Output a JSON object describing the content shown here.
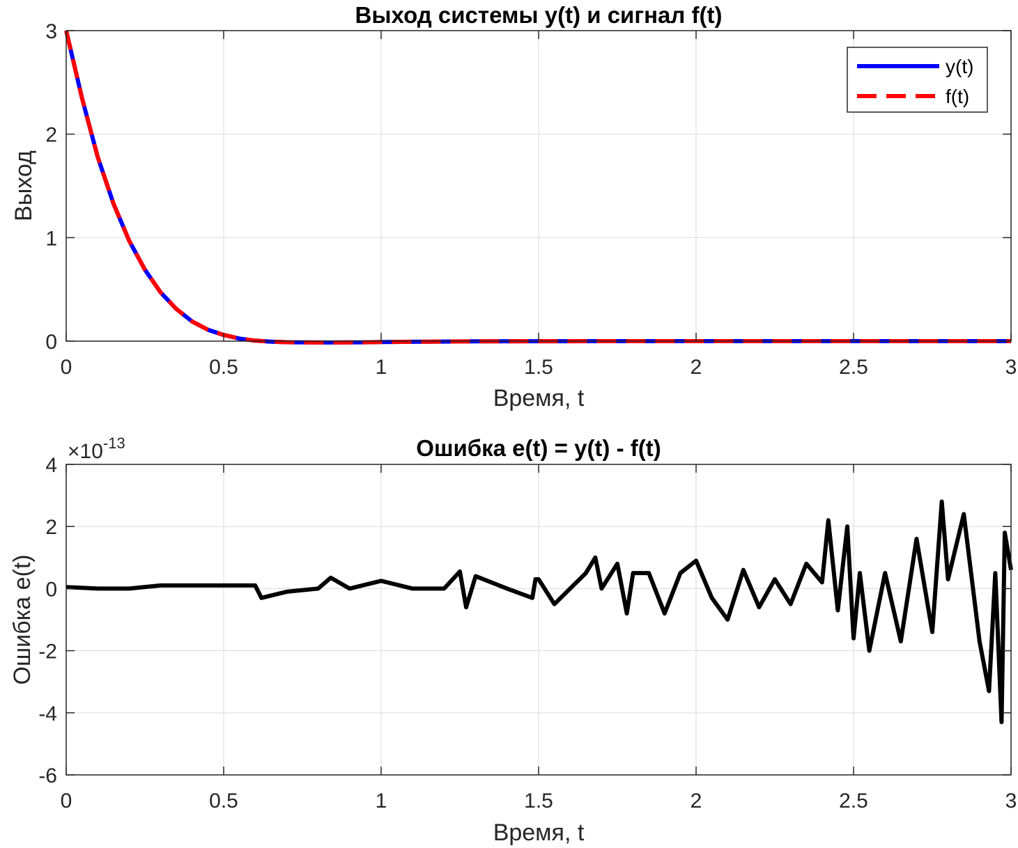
{
  "chart_data": [
    {
      "type": "line",
      "title": "Выход системы y(t) и сигнал f(t)",
      "xlabel": "Время, t",
      "ylabel": "Выход",
      "xlim": [
        0,
        3
      ],
      "ylim": [
        0,
        3
      ],
      "xticks": [
        0,
        0.5,
        1,
        1.5,
        2,
        2.5,
        3
      ],
      "xtick_labels": [
        "0",
        "0.5",
        "1",
        "1.5",
        "2",
        "2.5",
        "3"
      ],
      "yticks": [
        0,
        1,
        2,
        3
      ],
      "ytick_labels": [
        "0",
        "1",
        "2",
        "3"
      ],
      "grid": true,
      "legend_position": "top-right",
      "x": [
        0,
        0.05,
        0.1,
        0.15,
        0.2,
        0.25,
        0.3,
        0.35,
        0.4,
        0.45,
        0.5,
        0.55,
        0.6,
        0.65,
        0.7,
        0.75,
        0.8,
        0.85,
        0.9,
        0.95,
        1.0,
        1.1,
        1.2,
        1.3,
        1.5,
        1.75,
        2.0,
        2.5,
        3.0
      ],
      "series": [
        {
          "name": "y(t)",
          "color": "#0000ff",
          "style": "solid",
          "values": [
            3.0,
            2.35,
            1.78,
            1.33,
            0.97,
            0.69,
            0.47,
            0.31,
            0.19,
            0.11,
            0.06,
            0.025,
            0.005,
            -0.005,
            -0.01,
            -0.012,
            -0.013,
            -0.013,
            -0.012,
            -0.011,
            -0.009,
            -0.006,
            -0.004,
            -0.002,
            -0.001,
            0.0,
            0.0,
            0.0,
            0.0
          ]
        },
        {
          "name": "f(t)",
          "color": "#ff0000",
          "style": "dashed",
          "values": [
            3.0,
            2.35,
            1.78,
            1.33,
            0.97,
            0.69,
            0.47,
            0.31,
            0.19,
            0.11,
            0.06,
            0.025,
            0.005,
            -0.005,
            -0.01,
            -0.012,
            -0.013,
            -0.013,
            -0.012,
            -0.011,
            -0.009,
            -0.006,
            -0.004,
            -0.002,
            -0.001,
            0.0,
            0.0,
            0.0,
            0.0
          ]
        }
      ]
    },
    {
      "type": "line",
      "title": "Ошибка e(t) = y(t) - f(t)",
      "xlabel": "Время, t",
      "ylabel": "Ошибка e(t)",
      "xlim": [
        0,
        3
      ],
      "ylim": [
        -6,
        4
      ],
      "y_scale_base": "×10",
      "y_scale_exponent": "-13",
      "xticks": [
        0,
        0.5,
        1,
        1.5,
        2,
        2.5,
        3
      ],
      "xtick_labels": [
        "0",
        "0.5",
        "1",
        "1.5",
        "2",
        "2.5",
        "3"
      ],
      "yticks": [
        -6,
        -4,
        -2,
        0,
        2,
        4
      ],
      "ytick_labels": [
        "-6",
        "-4",
        "-2",
        "0",
        "2",
        "4"
      ],
      "grid": true,
      "x": [
        0,
        0.1,
        0.2,
        0.3,
        0.4,
        0.5,
        0.6,
        0.62,
        0.7,
        0.8,
        0.84,
        0.9,
        1.0,
        1.1,
        1.2,
        1.25,
        1.27,
        1.3,
        1.4,
        1.48,
        1.49,
        1.5,
        1.55,
        1.6,
        1.65,
        1.68,
        1.7,
        1.75,
        1.78,
        1.8,
        1.85,
        1.9,
        1.95,
        2.0,
        2.05,
        2.1,
        2.15,
        2.2,
        2.25,
        2.3,
        2.35,
        2.4,
        2.42,
        2.45,
        2.48,
        2.5,
        2.52,
        2.55,
        2.6,
        2.65,
        2.7,
        2.75,
        2.78,
        2.8,
        2.85,
        2.9,
        2.93,
        2.95,
        2.97,
        2.98,
        3.0
      ],
      "values": [
        0.05,
        0.0,
        0.0,
        0.1,
        0.1,
        0.1,
        0.1,
        -0.3,
        -0.1,
        0.0,
        0.35,
        0.0,
        0.25,
        0.0,
        0.0,
        0.55,
        -0.6,
        0.4,
        0.0,
        -0.3,
        0.3,
        0.3,
        -0.5,
        0.0,
        0.5,
        1.0,
        0.0,
        0.8,
        -0.8,
        0.5,
        0.5,
        -0.8,
        0.5,
        0.9,
        -0.3,
        -1.0,
        0.6,
        -0.6,
        0.3,
        -0.5,
        0.8,
        0.2,
        2.2,
        -0.7,
        2.0,
        -1.6,
        0.5,
        -2.0,
        0.5,
        -1.7,
        1.6,
        -1.4,
        2.8,
        0.3,
        2.4,
        -1.7,
        -3.3,
        0.5,
        -4.3,
        1.8,
        0.6
      ]
    }
  ]
}
